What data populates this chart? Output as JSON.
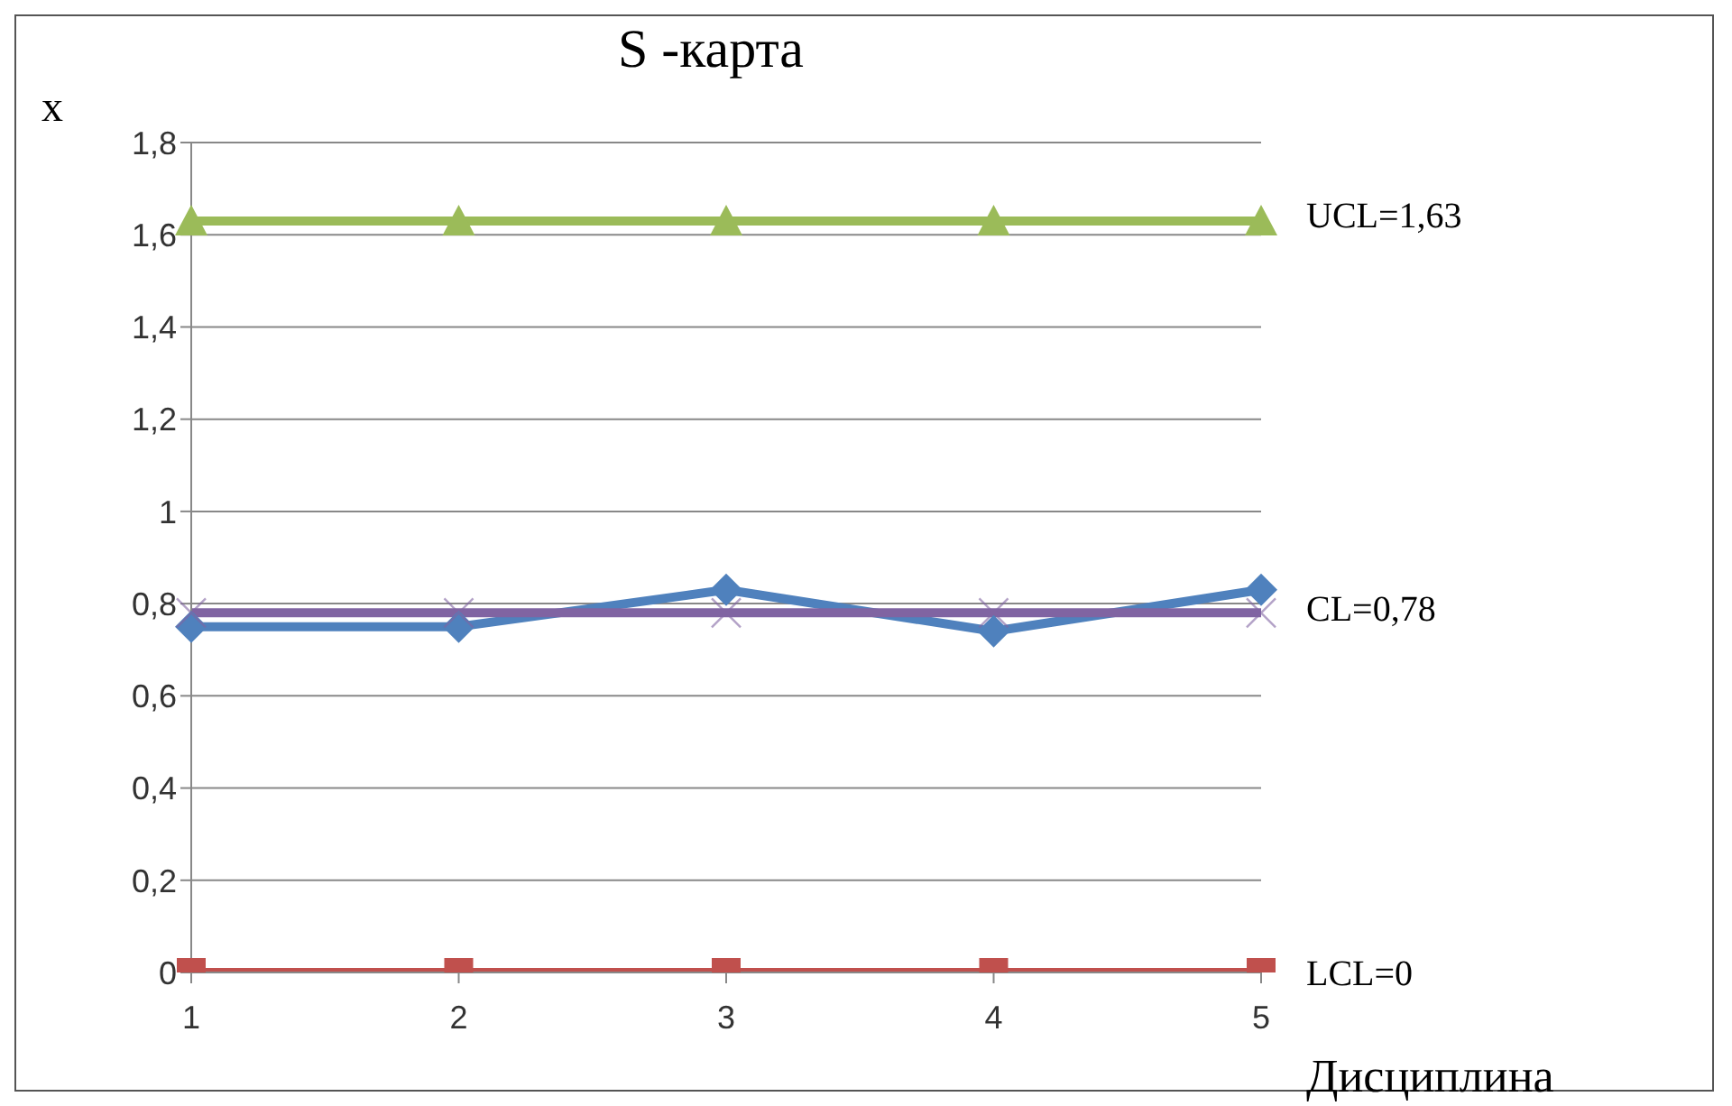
{
  "chart_data": {
    "type": "line",
    "title": "S -карта",
    "xlabel": "Дисциплина",
    "ylabel": "x",
    "categories": [
      "1",
      "2",
      "3",
      "4",
      "5"
    ],
    "series": [
      {
        "color": "#4f81bd",
        "marker": "diamond",
        "values": [
          0.75,
          0.75,
          0.83,
          0.74,
          0.83
        ]
      },
      {
        "color": "#c0504d",
        "marker": "square",
        "values": [
          0,
          0,
          0,
          0,
          0
        ]
      },
      {
        "color": "#9bbb59",
        "marker": "triangle",
        "values": [
          1.63,
          1.63,
          1.63,
          1.63,
          1.63
        ]
      },
      {
        "color": "#8064a2",
        "marker": "cross",
        "values": [
          0.78,
          0.78,
          0.78,
          0.78,
          0.78
        ]
      }
    ],
    "ylim": [
      0,
      1.8
    ],
    "yticks": [
      0,
      {
        "value": 0.2,
        "label": "0,2"
      },
      {
        "value": 0.4,
        "label": "0,4"
      },
      {
        "value": 0.6,
        "label": "0,6"
      },
      {
        "value": 0.8,
        "label": "0,8"
      },
      1,
      {
        "value": 1.2,
        "label": "1,2"
      },
      {
        "value": 1.4,
        "label": "1,4"
      },
      {
        "value": 1.6,
        "label": "1,6"
      },
      {
        "value": 1.8,
        "label": "1,8"
      }
    ],
    "grid": "y",
    "annotations": [
      "UCL=1,63",
      "CL=0,78",
      "LCL=0"
    ]
  }
}
